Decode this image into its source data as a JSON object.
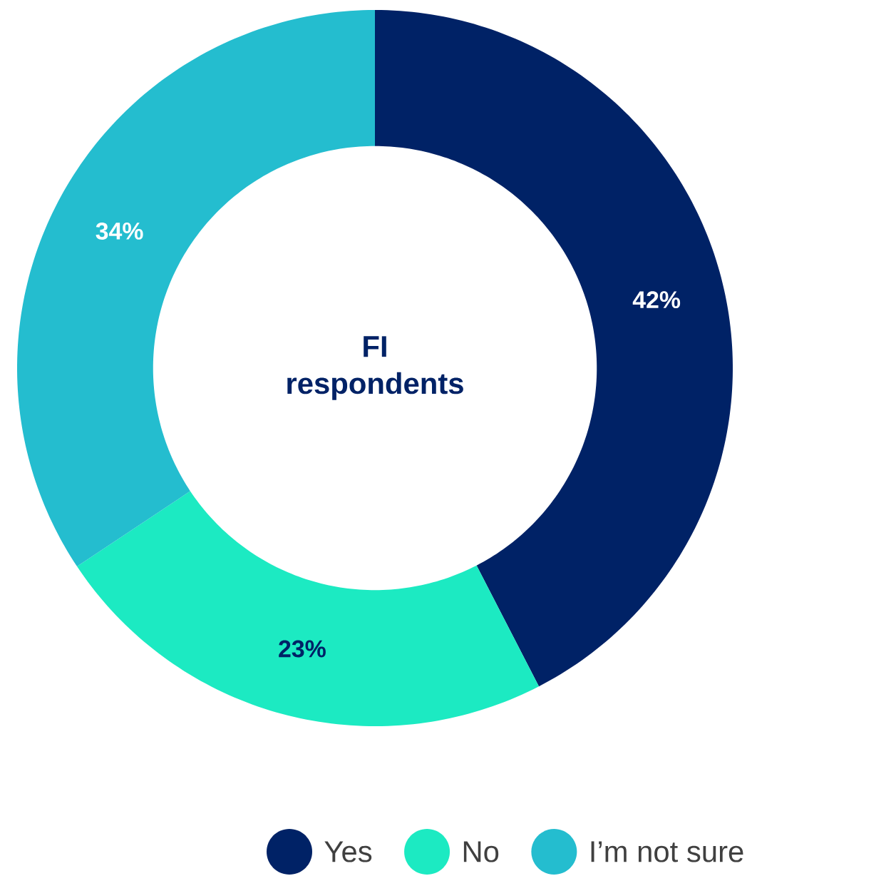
{
  "chart_data": {
    "type": "donut",
    "title": "FI respondents",
    "categories": [
      "Yes",
      "No",
      "I’m not sure"
    ],
    "values": [
      42,
      23,
      34
    ],
    "colors": [
      "#002266",
      "#1ceac2",
      "#24bdcf"
    ],
    "value_labels": [
      "42%",
      "23%",
      "34%"
    ],
    "legend": "bottom"
  }
}
